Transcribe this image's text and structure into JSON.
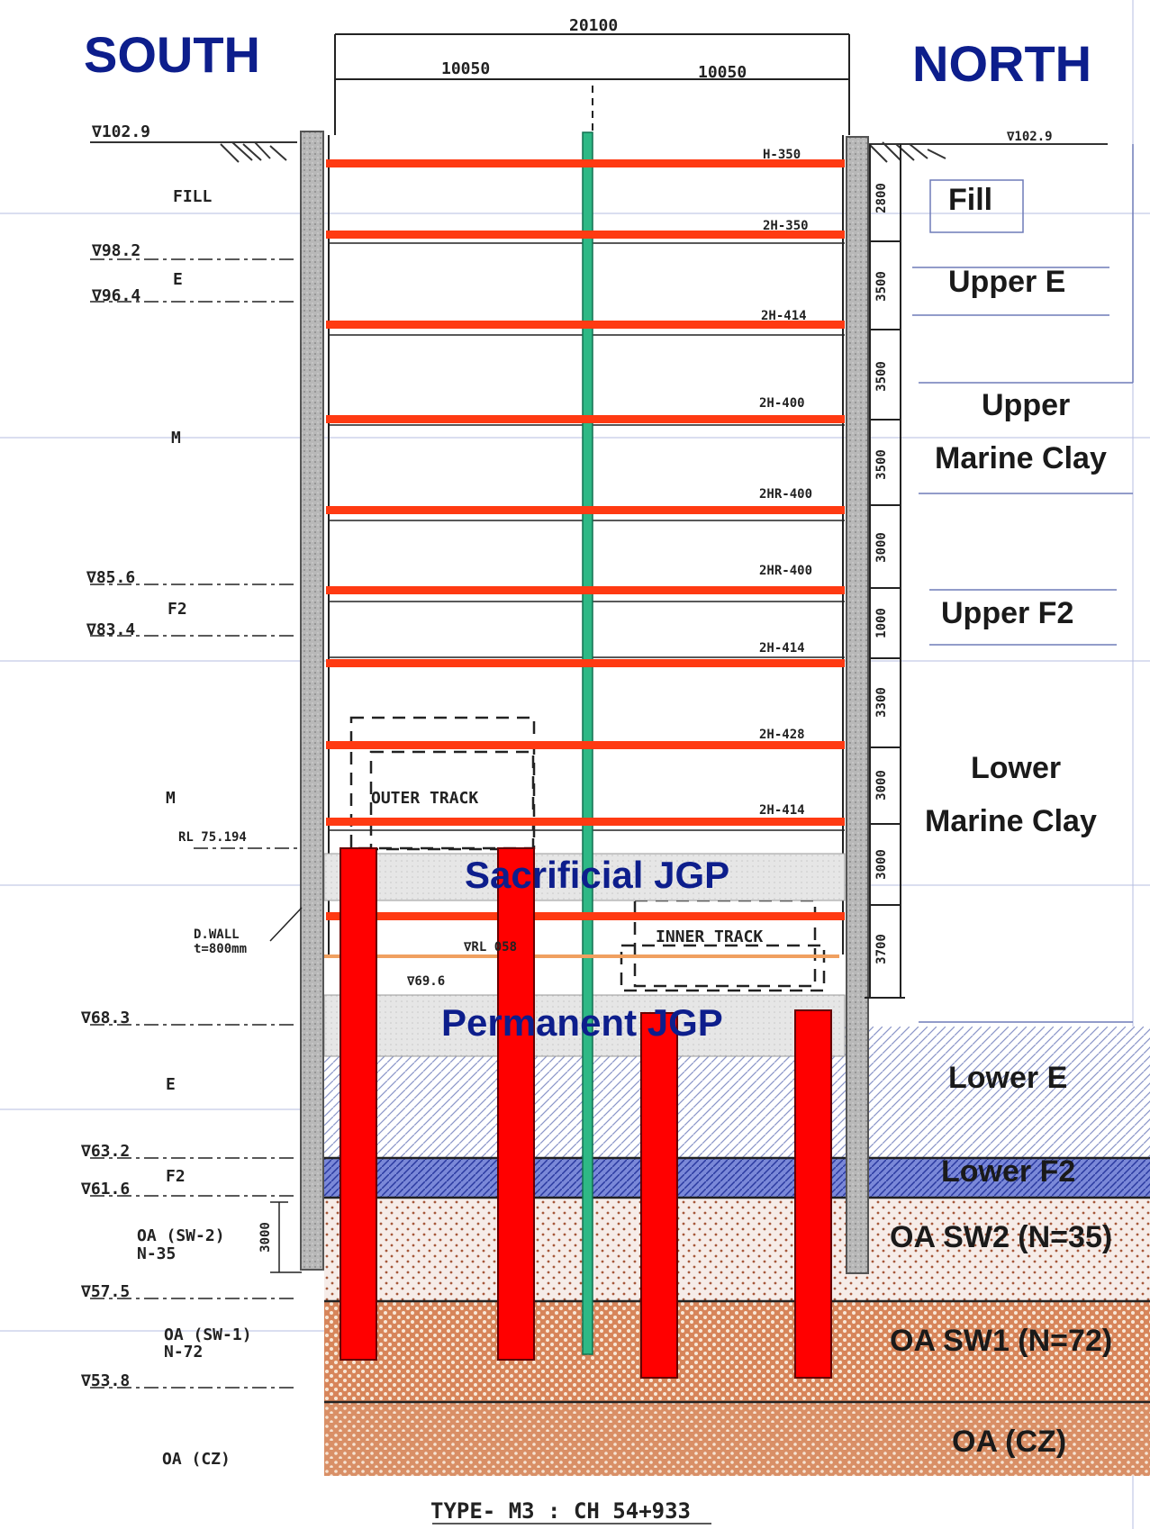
{
  "headings": {
    "south": "SOUTH",
    "north": "NORTH"
  },
  "dimensions": {
    "total": "20100",
    "left_half": "10050",
    "right_half": "10050"
  },
  "levels_left": [
    "∇102.9",
    "∇98.2",
    "∇96.4",
    "∇85.6",
    "∇83.4",
    "∇68.3",
    "∇63.2",
    "∇61.6",
    "∇57.5",
    "∇53.8"
  ],
  "level_right_top": "∇102.9",
  "soil_codes_left": {
    "fill": "FILL",
    "e1": "E",
    "m1": "M",
    "f2_1": "F2",
    "m2": "M",
    "e2": "E",
    "f2_2": "F2",
    "oa_sw2": "OA (SW-2)",
    "oa_sw2_n": "N-35",
    "oa_sw1": "OA (SW-1)",
    "oa_sw1_n": "N-72",
    "oa_cz": "OA (CZ)"
  },
  "struts": [
    "H-350",
    "2H-350",
    "2H-414",
    "2H-400",
    "2HR-400",
    "2HR-400",
    "2H-414",
    "2H-428",
    "2H-414"
  ],
  "spacing_dims": [
    "2800",
    "3500",
    "3500",
    "3500",
    "3000",
    "1000",
    "3300",
    "3000",
    "3000",
    "3700"
  ],
  "misc": {
    "rl": "RL 75.194",
    "dwall": "D.WALL",
    "dwall_t": "t=800mm",
    "lvl_69": "∇69.6",
    "rl_lower": "∇RL 058",
    "outer_track": "OUTER TRACK",
    "inner_track": "INNER TRACK",
    "left_dim": "3000"
  },
  "jgp": {
    "sacrificial": "Sacrificial JGP",
    "permanent": "Permanent JGP"
  },
  "layers_right": [
    "Fill",
    "Upper E",
    "Upper",
    "Marine Clay",
    "Upper F2",
    "Lower",
    "Marine Clay",
    "Lower E",
    "Lower F2",
    "OA SW2 (N=35)",
    "OA SW1 (N=72)",
    "OA (CZ)"
  ],
  "footer": "TYPE- M3 : CH 54+933",
  "colors": {
    "title": "#0d1e8c",
    "strut": "#ff3a12",
    "pile": "#ff0000",
    "king_post": "#2eb885",
    "wall": "#b4b4b4",
    "jgp": "#e4e4e4",
    "sw2_bg": "#f3e6e2",
    "sw1_bg": "#d98a60",
    "lower_f2": "#4a5ac8"
  }
}
